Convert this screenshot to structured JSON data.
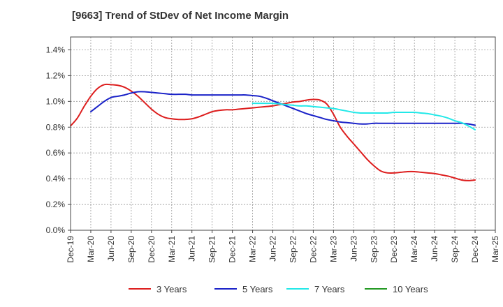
{
  "chart_data": {
    "type": "line",
    "title": "[9663]  Trend of StDev of Net Income Margin",
    "xlabel": "",
    "ylabel": "",
    "x_ticks": [
      "Dec-19",
      "Mar-20",
      "Jun-20",
      "Sep-20",
      "Dec-20",
      "Mar-21",
      "Jun-21",
      "Sep-21",
      "Dec-21",
      "Mar-22",
      "Jun-22",
      "Sep-22",
      "Dec-22",
      "Mar-23",
      "Jun-23",
      "Sep-23",
      "Dec-23",
      "Mar-24",
      "Jun-24",
      "Sep-24",
      "Dec-24",
      "Mar-25"
    ],
    "y_ticks": [
      "0.0%",
      "0.2%",
      "0.4%",
      "0.6%",
      "0.8%",
      "1.0%",
      "1.2%",
      "1.4%"
    ],
    "ylim": [
      0,
      1.5
    ],
    "grid": true,
    "legend_position": "bottom",
    "series": [
      {
        "name": "3 Years",
        "color": "#dd1e1e",
        "x": [
          "Dec-19",
          "Jan-20",
          "Feb-20",
          "Mar-20",
          "Apr-20",
          "May-20",
          "Jun-20",
          "Jul-20",
          "Aug-20",
          "Sep-20",
          "Oct-20",
          "Nov-20",
          "Dec-20",
          "Jan-21",
          "Feb-21",
          "Mar-21",
          "Apr-21",
          "May-21",
          "Jun-21",
          "Jul-21",
          "Aug-21",
          "Sep-21",
          "Oct-21",
          "Nov-21",
          "Dec-21",
          "Jan-22",
          "Feb-22",
          "Mar-22",
          "Apr-22",
          "May-22",
          "Jun-22",
          "Jul-22",
          "Aug-22",
          "Sep-22",
          "Oct-22",
          "Nov-22",
          "Dec-22",
          "Jan-23",
          "Feb-23",
          "Mar-23",
          "Apr-23",
          "May-23",
          "Jun-23",
          "Jul-23",
          "Aug-23",
          "Sep-23",
          "Oct-23",
          "Nov-23",
          "Dec-23",
          "Jan-24",
          "Feb-24",
          "Mar-24",
          "Apr-24",
          "May-24",
          "Jun-24",
          "Jul-24",
          "Aug-24",
          "Sep-24",
          "Oct-24",
          "Nov-24",
          "Dec-24"
        ],
        "values": [
          0.81,
          0.87,
          0.96,
          1.04,
          1.1,
          1.13,
          1.13,
          1.125,
          1.11,
          1.08,
          1.04,
          0.99,
          0.94,
          0.9,
          0.875,
          0.865,
          0.86,
          0.86,
          0.865,
          0.88,
          0.9,
          0.92,
          0.93,
          0.935,
          0.935,
          0.94,
          0.945,
          0.95,
          0.955,
          0.96,
          0.965,
          0.975,
          0.985,
          0.995,
          1.0,
          1.01,
          1.015,
          1.01,
          0.98,
          0.9,
          0.8,
          0.73,
          0.67,
          0.61,
          0.55,
          0.5,
          0.46,
          0.445,
          0.445,
          0.45,
          0.455,
          0.455,
          0.45,
          0.445,
          0.44,
          0.43,
          0.42,
          0.405,
          0.39,
          0.385,
          0.39
        ]
      },
      {
        "name": "5 Years",
        "color": "#1a22c8",
        "x": [
          "Mar-20",
          "Apr-20",
          "May-20",
          "Jun-20",
          "Jul-20",
          "Aug-20",
          "Sep-20",
          "Oct-20",
          "Nov-20",
          "Dec-20",
          "Jan-21",
          "Feb-21",
          "Mar-21",
          "Apr-21",
          "May-21",
          "Jun-21",
          "Jul-21",
          "Aug-21",
          "Sep-21",
          "Oct-21",
          "Nov-21",
          "Dec-21",
          "Jan-22",
          "Feb-22",
          "Mar-22",
          "Apr-22",
          "May-22",
          "Jun-22",
          "Jul-22",
          "Aug-22",
          "Sep-22",
          "Oct-22",
          "Nov-22",
          "Dec-22",
          "Jan-23",
          "Feb-23",
          "Mar-23",
          "Apr-23",
          "May-23",
          "Jun-23",
          "Jul-23",
          "Aug-23",
          "Sep-23",
          "Oct-23",
          "Nov-23",
          "Dec-23",
          "Jan-24",
          "Feb-24",
          "Mar-24",
          "Apr-24",
          "May-24",
          "Jun-24",
          "Jul-24",
          "Aug-24",
          "Sep-24",
          "Oct-24",
          "Nov-24",
          "Dec-24"
        ],
        "values": [
          0.92,
          0.96,
          1.0,
          1.03,
          1.04,
          1.05,
          1.065,
          1.075,
          1.075,
          1.07,
          1.065,
          1.06,
          1.055,
          1.055,
          1.055,
          1.05,
          1.05,
          1.05,
          1.05,
          1.05,
          1.05,
          1.05,
          1.05,
          1.05,
          1.045,
          1.04,
          1.025,
          1.005,
          0.985,
          0.965,
          0.945,
          0.925,
          0.905,
          0.89,
          0.875,
          0.86,
          0.85,
          0.84,
          0.835,
          0.83,
          0.825,
          0.825,
          0.83,
          0.83,
          0.83,
          0.83,
          0.83,
          0.83,
          0.83,
          0.83,
          0.83,
          0.83,
          0.83,
          0.83,
          0.83,
          0.83,
          0.825,
          0.815
        ]
      },
      {
        "name": "7 Years",
        "color": "#22e8e8",
        "x": [
          "Mar-22",
          "Apr-22",
          "May-22",
          "Jun-22",
          "Jul-22",
          "Aug-22",
          "Sep-22",
          "Oct-22",
          "Nov-22",
          "Dec-22",
          "Jan-23",
          "Feb-23",
          "Mar-23",
          "Apr-23",
          "May-23",
          "Jun-23",
          "Jul-23",
          "Aug-23",
          "Sep-23",
          "Oct-23",
          "Nov-23",
          "Dec-23",
          "Jan-24",
          "Feb-24",
          "Mar-24",
          "Apr-24",
          "May-24",
          "Jun-24",
          "Jul-24",
          "Aug-24",
          "Sep-24",
          "Oct-24",
          "Nov-24",
          "Dec-24"
        ],
        "values": [
          0.985,
          0.985,
          0.985,
          0.985,
          0.98,
          0.975,
          0.97,
          0.965,
          0.965,
          0.96,
          0.955,
          0.95,
          0.945,
          0.935,
          0.925,
          0.915,
          0.91,
          0.91,
          0.91,
          0.91,
          0.91,
          0.915,
          0.915,
          0.915,
          0.915,
          0.91,
          0.905,
          0.895,
          0.885,
          0.87,
          0.85,
          0.835,
          0.81,
          0.78
        ]
      },
      {
        "name": "10 Years",
        "color": "#229922",
        "x": [],
        "values": []
      }
    ]
  }
}
